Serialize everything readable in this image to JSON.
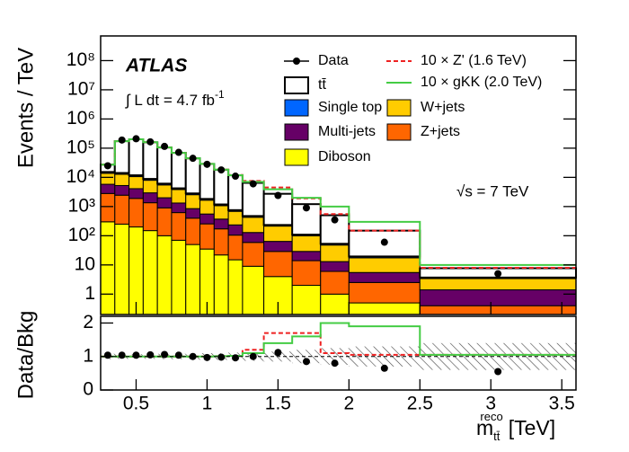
{
  "chart_data": {
    "type": "stacked-histogram",
    "experiment": "ATLAS",
    "luminosity_label": "∫ L dt = 4.7 fb",
    "luminosity_sup": "-1",
    "energy_label": "√s = 7 TeV",
    "y_label": "Events / TeV",
    "x_label": "m",
    "x_label_sub": "tt̄",
    "x_label_sup": "reco",
    "x_label_unit": "[TeV]",
    "log_y": true,
    "bins": [
      0.25,
      0.35,
      0.45,
      0.55,
      0.65,
      0.75,
      0.85,
      0.95,
      1.05,
      1.15,
      1.25,
      1.4,
      1.6,
      1.8,
      2.0,
      2.5,
      3.6
    ],
    "xlim": [
      0.25,
      3.6
    ],
    "xticks": [
      0.5,
      1,
      1.5,
      2,
      2.5,
      3,
      3.5
    ],
    "ylim": [
      0.2,
      700000000
    ],
    "yticks": [
      1,
      10,
      {
        "value": 100,
        "label": "10²"
      },
      {
        "value": 1000,
        "label": "10³"
      },
      {
        "value": 10000,
        "label": "10⁴"
      },
      {
        "value": 100000,
        "label": "10⁵"
      },
      {
        "value": 1000000,
        "label": "10⁶"
      },
      {
        "value": 10000000,
        "label": "10⁷"
      },
      {
        "value": 100000000,
        "label": "10⁸"
      }
    ],
    "series": [
      {
        "name": "Diboson",
        "color": "#ffff00",
        "values": [
          300,
          250,
          200,
          150,
          100,
          70,
          50,
          35,
          22,
          15,
          9,
          4,
          2,
          1,
          0.5,
          0.1
        ]
      },
      {
        "name": "Z+jets",
        "color": "#ff6600",
        "values": [
          2500,
          2200,
          1700,
          1200,
          800,
          550,
          350,
          220,
          150,
          90,
          50,
          25,
          12,
          5,
          2,
          0.3
        ]
      },
      {
        "name": "Multi-jets",
        "color": "#660066",
        "values": [
          3000,
          2800,
          2200,
          1600,
          1100,
          700,
          450,
          300,
          200,
          130,
          70,
          35,
          15,
          7,
          3,
          1
        ]
      },
      {
        "name": "W+jets",
        "color": "#ffcc00",
        "values": [
          8000,
          7500,
          6500,
          5000,
          3500,
          2500,
          1700,
          1100,
          700,
          450,
          300,
          150,
          70,
          35,
          12,
          2
        ]
      },
      {
        "name": "Single top",
        "color": "#0066ff",
        "values": [
          1500,
          1400,
          1200,
          900,
          600,
          400,
          270,
          170,
          110,
          70,
          45,
          20,
          10,
          5,
          2,
          0.3
        ]
      },
      {
        "name": "tt̄",
        "color": "#ffffff",
        "values": [
          12000,
          160000,
          190000,
          150000,
          100000,
          65000,
          42000,
          27000,
          17000,
          11000,
          6000,
          2500,
          1100,
          450,
          130,
          4
        ]
      }
    ],
    "data": {
      "name": "Data",
      "color": "#000000",
      "values": [
        25000,
        190000,
        210000,
        165000,
        115000,
        72000,
        45000,
        28000,
        18000,
        11000,
        6000,
        2400,
        900,
        350,
        60,
        5
      ]
    },
    "signals": [
      {
        "name": "10 × Z' (1.6 TeV)",
        "color": "#ee2222",
        "dashed": true,
        "values": [
          27300,
          174000,
          202000,
          160000,
          106000,
          69000,
          45000,
          29000,
          18500,
          12000,
          7500,
          4500,
          1900,
          550,
          150,
          8
        ]
      },
      {
        "name": "10 × gKK (2.0 TeV)",
        "color": "#44cc44",
        "dashed": false,
        "values": [
          27300,
          174000,
          202000,
          160000,
          106000,
          69000,
          45000,
          29000,
          18500,
          11800,
          7000,
          3900,
          2000,
          1000,
          300,
          10
        ]
      }
    ],
    "ratio": {
      "y_label": "Data/Bkg",
      "ylim": [
        0,
        2.2
      ],
      "yticks": [
        0,
        1,
        2
      ],
      "uncertainty": [
        0.08,
        0.07,
        0.07,
        0.07,
        0.08,
        0.08,
        0.09,
        0.1,
        0.1,
        0.12,
        0.13,
        0.15,
        0.2,
        0.25,
        0.3,
        0.4
      ],
      "data": [
        1.04,
        1.04,
        1.04,
        1.05,
        1.06,
        1.04,
        1.0,
        0.97,
        0.98,
        0.96,
        1.0,
        1.12,
        0.85,
        0.8,
        0.65,
        0.55
      ],
      "signals": [
        [
          1.0,
          1.0,
          1.0,
          1.0,
          1.0,
          1.0,
          1.0,
          1.0,
          1.01,
          1.02,
          1.2,
          1.7,
          1.7,
          1.1,
          1.05,
          1.05
        ],
        [
          1.0,
          1.0,
          1.0,
          1.0,
          1.0,
          1.0,
          1.0,
          1.0,
          1.01,
          1.02,
          1.1,
          1.4,
          1.6,
          2.0,
          1.9,
          1.05
        ]
      ]
    }
  }
}
